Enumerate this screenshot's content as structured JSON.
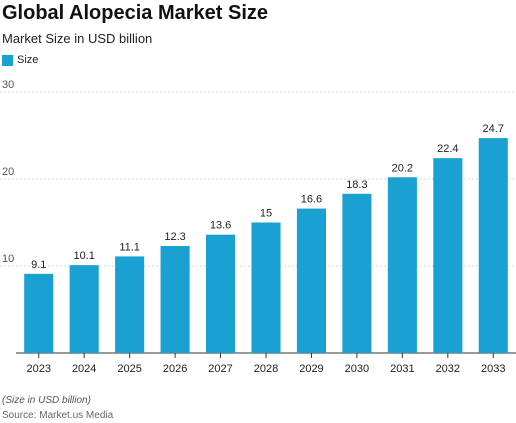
{
  "header": {
    "title": "Global Alopecia Market Size",
    "subtitle": "Market Size in USD billion"
  },
  "legend": {
    "label": "Size",
    "color": "#1ba1d1"
  },
  "footer": {
    "note": "(Size in USD billion)",
    "source": "Source: Market.us Media"
  },
  "chart_data": {
    "type": "bar",
    "title": "Global Alopecia Market Size",
    "subtitle": "Market Size in USD billion",
    "categories": [
      "2023",
      "2024",
      "2025",
      "2026",
      "2027",
      "2028",
      "2029",
      "2030",
      "2031",
      "2032",
      "2033"
    ],
    "series": [
      {
        "name": "Size",
        "color": "#1ba1d1",
        "values": [
          9.1,
          10.1,
          11.1,
          12.3,
          13.6,
          15,
          16.6,
          18.3,
          20.2,
          22.4,
          24.7
        ],
        "labels": [
          "9.1",
          "10.1",
          "11.1",
          "12.3",
          "13.6",
          "15",
          "16.6",
          "18.3",
          "20.2",
          "22.4",
          "24.7"
        ]
      }
    ],
    "ylim": [
      0,
      30
    ],
    "yticks": [
      "10",
      "20",
      "30"
    ],
    "grid": true,
    "legend_position": "top-left"
  }
}
